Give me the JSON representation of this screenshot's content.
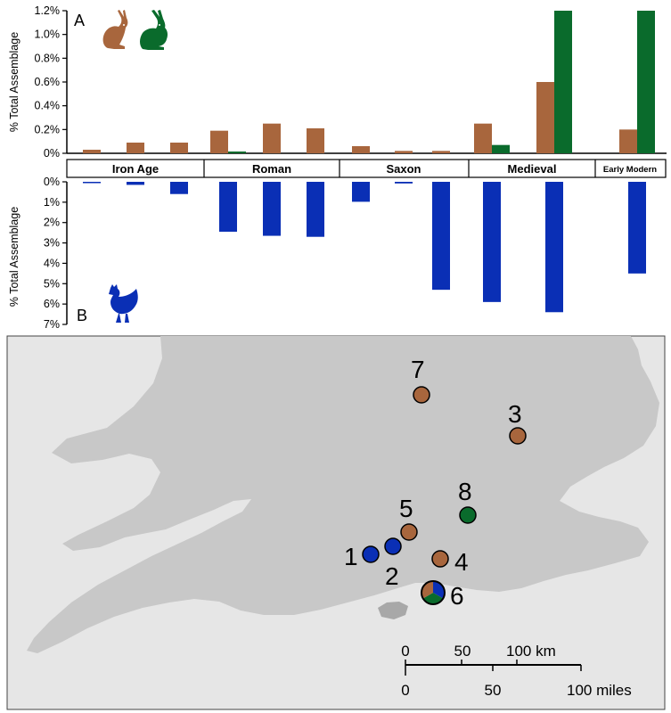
{
  "colors": {
    "hare": "#a8663d",
    "rabbit": "#0a6b2c",
    "chicken": "#0a2fb5",
    "map_sea": "#e6e6e6",
    "map_land": "#c8c8c8"
  },
  "chart_data": [
    {
      "id": "A",
      "type": "bar",
      "panel_label": "A",
      "ylabel": "% Total Assemblage",
      "ylim": [
        0,
        1.2
      ],
      "yticks": [
        "0%",
        "0.2%",
        "0.4%",
        "0.6%",
        "0.8%",
        "1.0%",
        "1.2%"
      ],
      "ytick_values": [
        0,
        0.2,
        0.4,
        0.6,
        0.8,
        1.0,
        1.2
      ],
      "icons": [
        "hare-icon",
        "rabbit-icon"
      ],
      "series": [
        {
          "name": "Hare",
          "color": "#a8663d",
          "values": [
            0.03,
            0.09,
            0.09,
            0.19,
            0.25,
            0.21,
            0.06,
            0.02,
            0.02,
            0.25,
            0.6,
            0.2
          ]
        },
        {
          "name": "Rabbit",
          "color": "#0a6b2c",
          "values": [
            0,
            0,
            0,
            0.015,
            0,
            0,
            0,
            0,
            0,
            0.07,
            1.2,
            1.2
          ]
        }
      ]
    },
    {
      "id": "B",
      "type": "bar",
      "panel_label": "B",
      "ylabel": "% Total Assemblage",
      "ylim": [
        0,
        7
      ],
      "yticks": [
        "0%",
        "1%",
        "2%",
        "3%",
        "4%",
        "5%",
        "6%",
        "7%"
      ],
      "ytick_values": [
        0,
        1,
        2,
        3,
        4,
        5,
        6,
        7
      ],
      "icons": [
        "chicken-icon"
      ],
      "series": [
        {
          "name": "Chicken",
          "color": "#0a2fb5",
          "values": [
            0.05,
            0.15,
            0.6,
            2.45,
            2.65,
            2.7,
            0.98,
            0.08,
            5.3,
            5.9,
            6.4,
            4.5
          ]
        }
      ]
    }
  ],
  "periods": [
    "Iron Age",
    "Roman",
    "Saxon",
    "Medieval",
    "Early Modern"
  ],
  "map": {
    "sites": [
      {
        "label": "1",
        "species": "chicken"
      },
      {
        "label": "2",
        "species": "chicken"
      },
      {
        "label": "3",
        "species": "hare"
      },
      {
        "label": "4",
        "species": "hare"
      },
      {
        "label": "5",
        "species": "hare"
      },
      {
        "label": "6",
        "species": "mixed"
      },
      {
        "label": "7",
        "species": "hare"
      },
      {
        "label": "8",
        "species": "rabbit"
      }
    ],
    "scale": {
      "km_ticks": [
        "0",
        "50",
        "100 km"
      ],
      "mile_ticks": [
        "0",
        "50",
        "100 miles"
      ]
    }
  }
}
